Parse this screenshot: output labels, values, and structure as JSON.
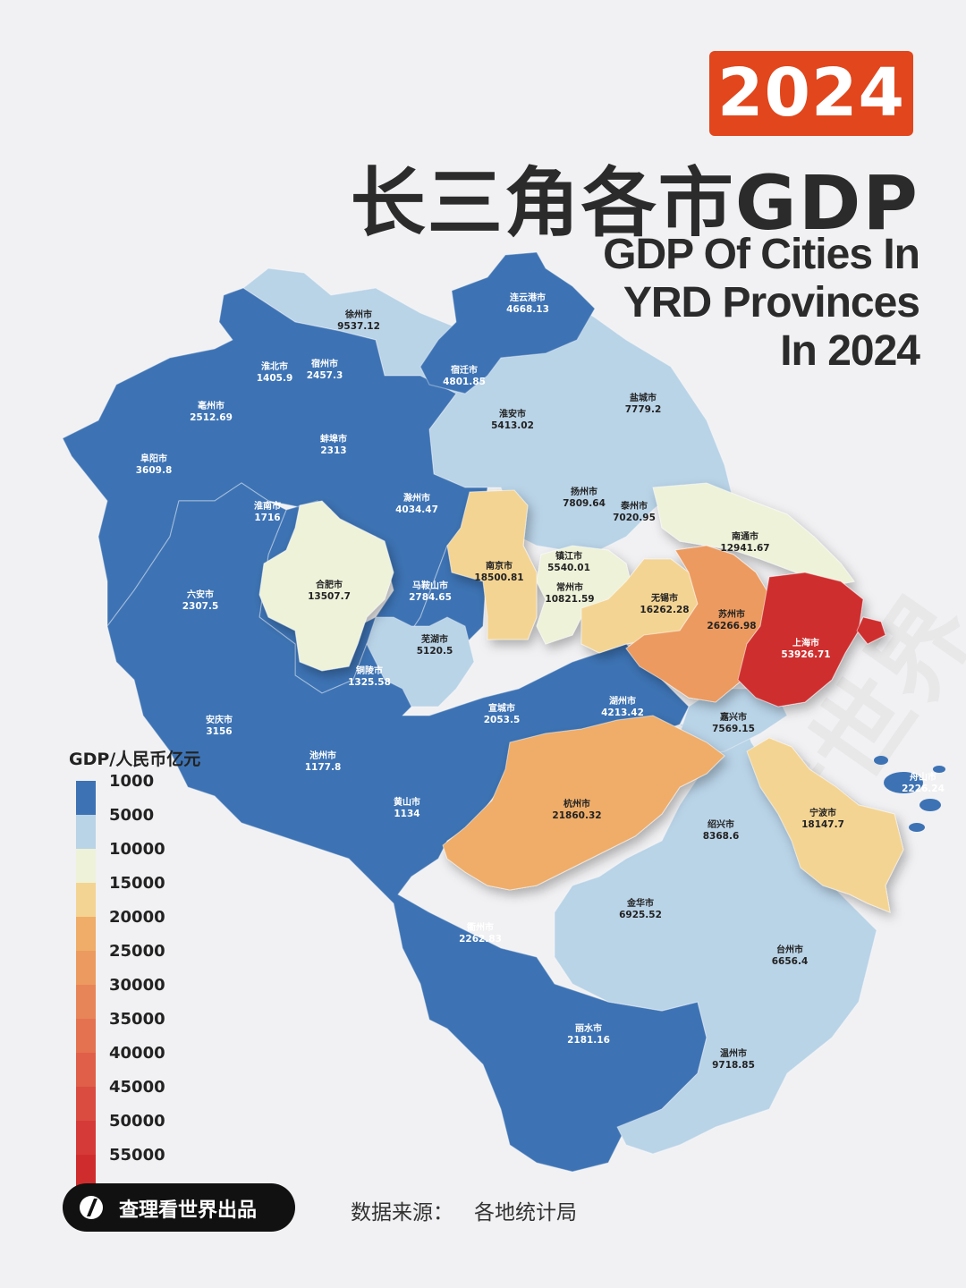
{
  "year_badge": "2024",
  "title_cn": "长三角各市GDP",
  "title_en": [
    "GDP Of Cities In",
    "YRD Provinces",
    "In 2024"
  ],
  "colors": {
    "background": "#f1f1f3",
    "badge": "#e2461c",
    "title": "#2b2b2b"
  },
  "legend": {
    "title": "GDP/人民币亿元",
    "items": [
      {
        "label": "1000",
        "color": "#3d73b4"
      },
      {
        "label": "5000",
        "color": "#b9d3e7"
      },
      {
        "label": "10000",
        "color": "#eef2d9"
      },
      {
        "label": "15000",
        "color": "#f4d493"
      },
      {
        "label": "20000",
        "color": "#efad69"
      },
      {
        "label": "25000",
        "color": "#ec9a5f"
      },
      {
        "label": "30000",
        "color": "#e88558"
      },
      {
        "label": "35000",
        "color": "#e47250"
      },
      {
        "label": "40000",
        "color": "#df5f48"
      },
      {
        "label": "45000",
        "color": "#da4c40"
      },
      {
        "label": "50000",
        "color": "#d53a38"
      },
      {
        "label": "55000",
        "color": "#cf2d2d"
      }
    ]
  },
  "cities": [
    {
      "name": "徐州市",
      "gdp": "9537.12",
      "tier": 1
    },
    {
      "name": "连云港市",
      "gdp": "4668.13",
      "tier": 0
    },
    {
      "name": "淮北市",
      "gdp": "1405.9",
      "tier": 0
    },
    {
      "name": "宿州市",
      "gdp": "2457.3",
      "tier": 0
    },
    {
      "name": "宿迁市",
      "gdp": "4801.85",
      "tier": 0
    },
    {
      "name": "亳州市",
      "gdp": "2512.69",
      "tier": 0
    },
    {
      "name": "盐城市",
      "gdp": "7779.2",
      "tier": 1
    },
    {
      "name": "淮安市",
      "gdp": "5413.02",
      "tier": 1
    },
    {
      "name": "蚌埠市",
      "gdp": "2313",
      "tier": 0
    },
    {
      "name": "阜阳市",
      "gdp": "3609.8",
      "tier": 0
    },
    {
      "name": "扬州市",
      "gdp": "7809.64",
      "tier": 1
    },
    {
      "name": "淮南市",
      "gdp": "1716",
      "tier": 0
    },
    {
      "name": "滁州市",
      "gdp": "4034.47",
      "tier": 0
    },
    {
      "name": "泰州市",
      "gdp": "7020.95",
      "tier": 1
    },
    {
      "name": "南通市",
      "gdp": "12941.67",
      "tier": 2
    },
    {
      "name": "镇江市",
      "gdp": "5540.01",
      "tier": 1
    },
    {
      "name": "南京市",
      "gdp": "18500.81",
      "tier": 3
    },
    {
      "name": "合肥市",
      "gdp": "13507.7",
      "tier": 2
    },
    {
      "name": "马鞍山市",
      "gdp": "2784.65",
      "tier": 0
    },
    {
      "name": "常州市",
      "gdp": "10821.59",
      "tier": 2
    },
    {
      "name": "无锡市",
      "gdp": "16262.28",
      "tier": 3
    },
    {
      "name": "六安市",
      "gdp": "2307.5",
      "tier": 0
    },
    {
      "name": "苏州市",
      "gdp": "26266.98",
      "tier": 5
    },
    {
      "name": "芜湖市",
      "gdp": "5120.5",
      "tier": 1
    },
    {
      "name": "上海市",
      "gdp": "53926.71",
      "tier": 11
    },
    {
      "name": "铜陵市",
      "gdp": "1325.58",
      "tier": 0
    },
    {
      "name": "宣城市",
      "gdp": "2053.5",
      "tier": 0
    },
    {
      "name": "湖州市",
      "gdp": "4213.42",
      "tier": 0
    },
    {
      "name": "嘉兴市",
      "gdp": "7569.15",
      "tier": 1
    },
    {
      "name": "安庆市",
      "gdp": "3156",
      "tier": 0
    },
    {
      "name": "池州市",
      "gdp": "1177.8",
      "tier": 0
    },
    {
      "name": "舟山市",
      "gdp": "2226.24",
      "tier": 0
    },
    {
      "name": "杭州市",
      "gdp": "21860.32",
      "tier": 4
    },
    {
      "name": "黄山市",
      "gdp": "1134",
      "tier": 0
    },
    {
      "name": "绍兴市",
      "gdp": "8368.6",
      "tier": 1
    },
    {
      "name": "宁波市",
      "gdp": "18147.7",
      "tier": 3
    },
    {
      "name": "金华市",
      "gdp": "6925.52",
      "tier": 1
    },
    {
      "name": "衢州市",
      "gdp": "2262.83",
      "tier": 0
    },
    {
      "name": "台州市",
      "gdp": "6656.4",
      "tier": 1
    },
    {
      "name": "丽水市",
      "gdp": "2181.16",
      "tier": 0
    },
    {
      "name": "温州市",
      "gdp": "9718.85",
      "tier": 1
    }
  ],
  "credit": "查理看世界出品",
  "source_label": "数据来源：",
  "source_value": "各地统计局"
}
